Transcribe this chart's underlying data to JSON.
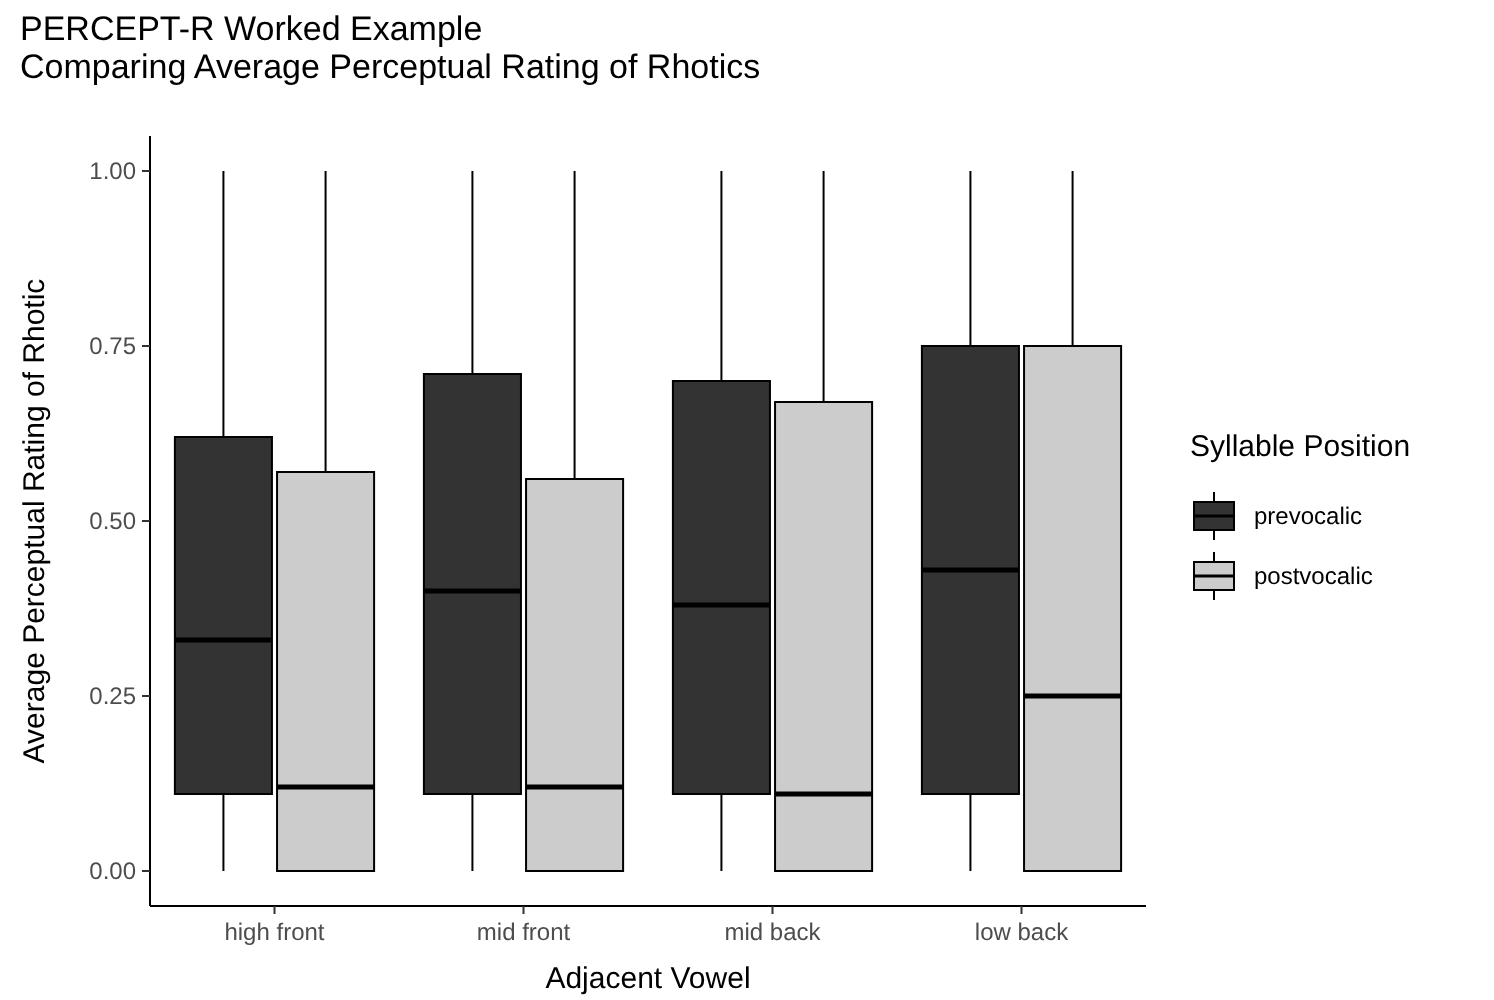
{
  "chart_data": {
    "type": "box",
    "title": "PERCEPT-R Worked Example\nComparing Average Perceptual Rating of Rhotics",
    "xlabel": "Adjacent Vowel",
    "ylabel": "Average Perceptual Rating of Rhotic",
    "legend_title": "Syllable Position",
    "categories": [
      "high front",
      "mid front",
      "mid back",
      "low back"
    ],
    "series": [
      {
        "name": "prevocalic",
        "color": "#333333",
        "boxes": [
          {
            "low": 0,
            "q1": 0.11,
            "median": 0.33,
            "q3": 0.62,
            "high": 1
          },
          {
            "low": 0,
            "q1": 0.11,
            "median": 0.4,
            "q3": 0.71,
            "high": 1
          },
          {
            "low": 0,
            "q1": 0.11,
            "median": 0.38,
            "q3": 0.7,
            "high": 1
          },
          {
            "low": 0,
            "q1": 0.11,
            "median": 0.43,
            "q3": 0.75,
            "high": 1
          }
        ]
      },
      {
        "name": "postvocalic",
        "color": "#cccccc",
        "boxes": [
          {
            "low": 0,
            "q1": 0,
            "median": 0.12,
            "q3": 0.57,
            "high": 1
          },
          {
            "low": 0,
            "q1": 0,
            "median": 0.12,
            "q3": 0.56,
            "high": 1
          },
          {
            "low": 0,
            "q1": 0,
            "median": 0.11,
            "q3": 0.67,
            "high": 1
          },
          {
            "low": 0,
            "q1": 0,
            "median": 0.25,
            "q3": 0.75,
            "high": 1
          }
        ]
      }
    ],
    "ylim": [
      -0.05,
      1.05
    ],
    "yticks": [
      {
        "value": 0,
        "label": "0.00"
      },
      {
        "value": 0.25,
        "label": "0.25"
      },
      {
        "value": 0.5,
        "label": "0.50"
      },
      {
        "value": 0.75,
        "label": "0.75"
      },
      {
        "value": 1,
        "label": "1.00"
      }
    ],
    "grid": false,
    "legend": "right"
  }
}
